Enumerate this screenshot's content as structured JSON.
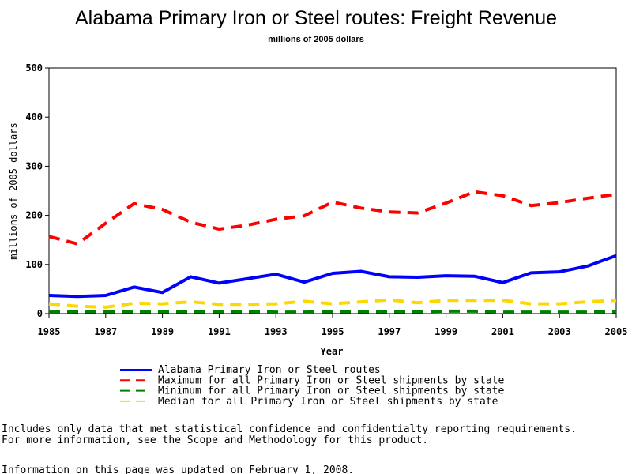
{
  "chart_data": {
    "type": "line",
    "title": "Alabama Primary Iron or Steel routes: Freight Revenue",
    "subtitle": "millions of 2005 dollars",
    "xlabel": "Year",
    "ylabel": "millions of 2005 dollars",
    "xlim": [
      1985,
      2005
    ],
    "ylim": [
      0,
      500
    ],
    "x_ticks": [
      1985,
      1987,
      1989,
      1991,
      1993,
      1995,
      1997,
      1999,
      2001,
      2003,
      2005
    ],
    "y_ticks": [
      0,
      100,
      200,
      300,
      400,
      500
    ],
    "grid": false,
    "legend_position": "bottom",
    "x": [
      1985,
      1986,
      1987,
      1988,
      1989,
      1990,
      1991,
      1992,
      1993,
      1994,
      1995,
      1996,
      1997,
      1998,
      1999,
      2000,
      2001,
      2002,
      2003,
      2004,
      2005
    ],
    "series": [
      {
        "name": "Alabama Primary Iron or Steel routes",
        "color": "#0000ff",
        "style": "solid",
        "values": [
          37,
          35,
          37,
          54,
          43,
          75,
          62,
          71,
          80,
          64,
          82,
          86,
          75,
          74,
          77,
          76,
          63,
          83,
          85,
          97,
          118
        ]
      },
      {
        "name": "Maximum for all Primary Iron or Steel shipments by state",
        "color": "#ff0000",
        "style": "dashed",
        "values": [
          157,
          142,
          184,
          224,
          212,
          186,
          172,
          180,
          192,
          199,
          227,
          215,
          207,
          205,
          225,
          248,
          240,
          220,
          226,
          235,
          243
        ]
      },
      {
        "name": "Minimum for all Primary Iron or Steel shipments by state",
        "color": "#008000",
        "style": "dashed",
        "values": [
          3,
          4,
          4,
          4,
          4,
          4,
          4,
          4,
          3,
          3,
          4,
          4,
          4,
          4,
          5,
          5,
          3,
          3,
          3,
          3,
          4
        ]
      },
      {
        "name": "Median for all Primary Iron or Steel shipments by state",
        "color": "#ffd700",
        "style": "dashed",
        "values": [
          20,
          15,
          13,
          21,
          20,
          24,
          19,
          19,
          20,
          25,
          20,
          24,
          28,
          22,
          27,
          27,
          27,
          20,
          20,
          24,
          27
        ]
      }
    ]
  },
  "footnotes": {
    "line1": "Includes only data that met statistical confidence and confidentialty reporting requirements.",
    "line2": "For more information, see the Scope and Methodology for this product.",
    "line3": "Information on this page was updated on February 1, 2008."
  }
}
